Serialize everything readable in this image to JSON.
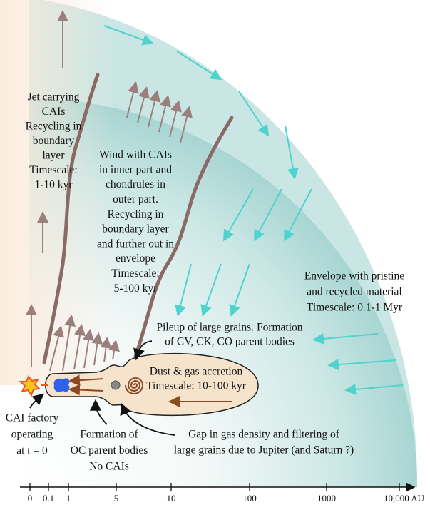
{
  "jet": {
    "lines": [
      "Jet carrying",
      "CAIs",
      "Recycling in",
      "boundary",
      "layer",
      "Timescale:",
      "1-10 kyr"
    ]
  },
  "wind": {
    "lines": [
      "Wind with CAIs",
      "in inner part and",
      "chondrules in",
      "outer part.",
      "Recycling in",
      "boundary layer",
      "and further out in",
      "envelope",
      "Timescale:",
      "5-100 kyr"
    ]
  },
  "envelope": {
    "lines": [
      "Envelope with pristine",
      "and recycled material",
      "Timescale: 0.1-1 Myr"
    ]
  },
  "pileup": {
    "lines": [
      "Pileup of large grains. Formation",
      "of CV, CK, CO parent bodies"
    ]
  },
  "disk": {
    "lines": [
      "Dust & gas accretion",
      "Timescale: 10-100 kyr"
    ]
  },
  "cai_factory": {
    "lines": [
      "CAI factory",
      "operating",
      "at t = 0"
    ]
  },
  "oc": {
    "lines": [
      "Formation of",
      "OC parent bodies",
      "No CAIs"
    ]
  },
  "gap": {
    "lines": [
      "Gap in gas density and filtering of",
      "large grains due to Jupiter (and Saturn ?)"
    ]
  },
  "axis": {
    "ticks": [
      "0",
      "0.1",
      "1",
      "5",
      "10",
      "100",
      "1000",
      "10,000 AU"
    ]
  }
}
